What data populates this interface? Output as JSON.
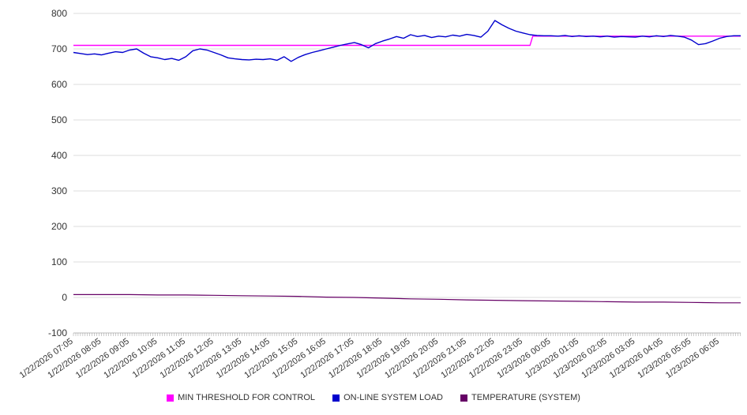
{
  "chart_data": {
    "type": "line",
    "title": "",
    "xlabel": "",
    "ylabel": "",
    "ylim": [
      -100,
      800
    ],
    "ytick_step": 100,
    "x_max": 23.75,
    "minor_tick_step": 0.0833,
    "grid": "horizontal",
    "legend_position": "bottom",
    "x_labels": [
      "1/22/2026 07:05",
      "1/22/2026 08:05",
      "1/22/2026 09:05",
      "1/22/2026 10:05",
      "1/22/2026 11:05",
      "1/22/2026 12:05",
      "1/22/2026 13:05",
      "1/22/2026 14:05",
      "1/22/2026 15:05",
      "1/22/2026 16:05",
      "1/22/2026 17:05",
      "1/22/2026 18:05",
      "1/22/2026 19:05",
      "1/22/2026 20:05",
      "1/22/2026 21:05",
      "1/22/2026 22:05",
      "1/22/2026 23:05",
      "1/23/2026 00:05",
      "1/23/2026 01:05",
      "1/23/2026 02:05",
      "1/23/2026 03:05",
      "1/23/2026 04:05",
      "1/23/2026 05:05",
      "1/23/2026 06:05"
    ],
    "series": [
      {
        "name": "MIN THRESHOLD FOR CONTROL",
        "color": "#ff00ff",
        "width": 1.4,
        "points": [
          [
            0,
            710
          ],
          [
            16.25,
            710
          ],
          [
            16.35,
            736
          ],
          [
            23.75,
            736
          ]
        ]
      },
      {
        "name": "ON-LINE SYSTEM LOAD",
        "color": "#0000cd",
        "width": 1.4,
        "x_start": 0,
        "x_step": 0.25,
        "values": [
          690,
          687,
          684,
          686,
          683,
          688,
          692,
          690,
          697,
          700,
          688,
          678,
          675,
          670,
          673,
          668,
          678,
          695,
          700,
          697,
          690,
          683,
          675,
          672,
          670,
          669,
          671,
          670,
          672,
          668,
          678,
          665,
          676,
          684,
          690,
          695,
          700,
          705,
          710,
          714,
          718,
          712,
          703,
          715,
          722,
          728,
          735,
          730,
          740,
          735,
          738,
          732,
          736,
          734,
          739,
          736,
          741,
          738,
          733,
          750,
          780,
          768,
          758,
          750,
          745,
          740,
          738,
          737,
          737,
          736,
          738,
          735,
          737,
          735,
          736,
          734,
          736,
          733,
          735,
          734,
          733,
          736,
          734,
          737,
          735,
          738,
          736,
          733,
          725,
          712,
          715,
          722,
          730,
          735,
          737,
          737
        ]
      },
      {
        "name": "TEMPERATURE (SYSTEM)",
        "color": "#660066",
        "width": 1.2,
        "points": [
          [
            0,
            8
          ],
          [
            1,
            8
          ],
          [
            2,
            8
          ],
          [
            3,
            7
          ],
          [
            4,
            7
          ],
          [
            5,
            6
          ],
          [
            6,
            5
          ],
          [
            7,
            4
          ],
          [
            8,
            3
          ],
          [
            9,
            1
          ],
          [
            10,
            0
          ],
          [
            11,
            -2
          ],
          [
            12,
            -4
          ],
          [
            13,
            -5
          ],
          [
            14,
            -7
          ],
          [
            15,
            -8
          ],
          [
            16,
            -9
          ],
          [
            17,
            -10
          ],
          [
            18,
            -11
          ],
          [
            19,
            -12
          ],
          [
            20,
            -13
          ],
          [
            21,
            -13
          ],
          [
            22,
            -14
          ],
          [
            23,
            -15
          ],
          [
            23.75,
            -15
          ]
        ]
      }
    ]
  }
}
